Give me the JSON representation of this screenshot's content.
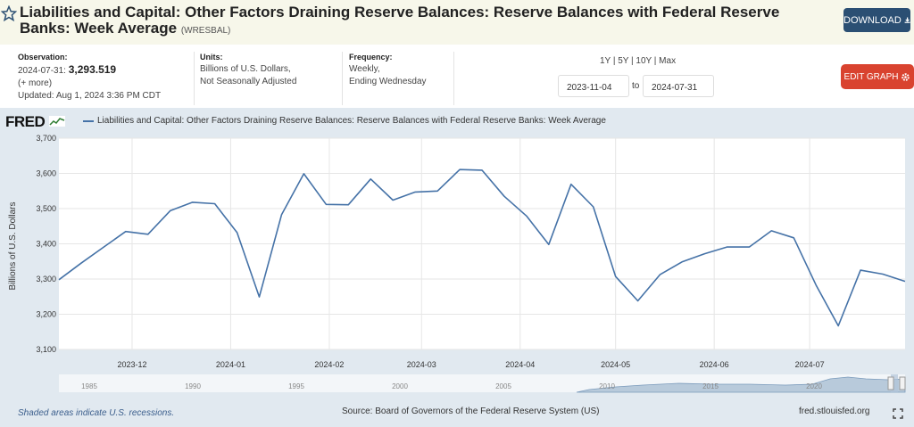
{
  "header": {
    "title": "Liabilities and Capital: Other Factors Draining Reserve Balances: Reserve Balances with Federal Reserve Banks: Week Average",
    "series_id": "(WRESBAL)",
    "download_label": "DOWNLOAD"
  },
  "observation": {
    "label": "Observation:",
    "date": "2024-07-31:",
    "value": "3,293.519",
    "more": "(+ more)",
    "updated": "Updated: Aug 1, 2024 3:36 PM CDT"
  },
  "units": {
    "label": "Units:",
    "line1": "Billions of U.S. Dollars,",
    "line2": "Not Seasonally Adjusted"
  },
  "frequency": {
    "label": "Frequency:",
    "line1": "Weekly,",
    "line2": "Ending Wednesday"
  },
  "range": {
    "links": "1Y | 5Y | 10Y | Max",
    "start": "2023-11-04",
    "to": "to",
    "end": "2024-07-31"
  },
  "edit_label": "EDIT GRAPH",
  "logo": "FRED",
  "colors": {
    "line": "#4572a7",
    "panel": "#e1e9f0",
    "download": "#2b4f73",
    "edit": "#d9432f"
  },
  "chart_data": {
    "type": "line",
    "legend": "Liabilities and Capital: Other Factors Draining Reserve Balances: Reserve Balances with Federal Reserve Banks: Week Average",
    "ylabel": "Billions of U.S. Dollars",
    "ylim": [
      3100,
      3700
    ],
    "yticks": [
      "3,100",
      "3,200",
      "3,300",
      "3,400",
      "3,500",
      "3,600",
      "3,700"
    ],
    "xlim": [
      "2023-11-08",
      "2024-07-31"
    ],
    "xticks": [
      {
        "label": "2023-12",
        "date": "2023-12-01"
      },
      {
        "label": "2024-01",
        "date": "2024-01-01"
      },
      {
        "label": "2024-02",
        "date": "2024-02-01"
      },
      {
        "label": "2024-03",
        "date": "2024-03-01"
      },
      {
        "label": "2024-04",
        "date": "2024-04-01"
      },
      {
        "label": "2024-05",
        "date": "2024-05-01"
      },
      {
        "label": "2024-06",
        "date": "2024-06-01"
      },
      {
        "label": "2024-07",
        "date": "2024-07-01"
      }
    ],
    "x": [
      "2023-11-08",
      "2023-11-15",
      "2023-11-22",
      "2023-11-29",
      "2023-12-06",
      "2023-12-13",
      "2023-12-20",
      "2023-12-27",
      "2024-01-03",
      "2024-01-10",
      "2024-01-17",
      "2024-01-24",
      "2024-01-31",
      "2024-02-07",
      "2024-02-14",
      "2024-02-21",
      "2024-02-28",
      "2024-03-06",
      "2024-03-13",
      "2024-03-20",
      "2024-03-27",
      "2024-04-03",
      "2024-04-10",
      "2024-04-17",
      "2024-04-24",
      "2024-05-01",
      "2024-05-08",
      "2024-05-15",
      "2024-05-22",
      "2024-05-29",
      "2024-06-05",
      "2024-06-12",
      "2024-06-19",
      "2024-06-26",
      "2024-07-03",
      "2024-07-10",
      "2024-07-17",
      "2024-07-24",
      "2024-07-31"
    ],
    "values": [
      3298,
      3345,
      3390,
      3435,
      3427,
      3494,
      3518,
      3514,
      3432,
      3249,
      3483,
      3599,
      3512,
      3511,
      3584,
      3524,
      3547,
      3550,
      3611,
      3609,
      3535,
      3479,
      3398,
      3569,
      3505,
      3307,
      3238,
      3313,
      3349,
      3372,
      3391,
      3391,
      3437,
      3417,
      3283,
      3167,
      3325,
      3314,
      3293.519
    ],
    "grid": true,
    "navigator_years": [
      "1985",
      "1990",
      "1995",
      "2000",
      "2005",
      "2010",
      "2015",
      "2020"
    ]
  },
  "footer": {
    "note": "Shaded areas indicate U.S. recessions.",
    "source": "Source: Board of Governors of the Federal Reserve System (US)",
    "site": "fred.stlouisfed.org"
  }
}
